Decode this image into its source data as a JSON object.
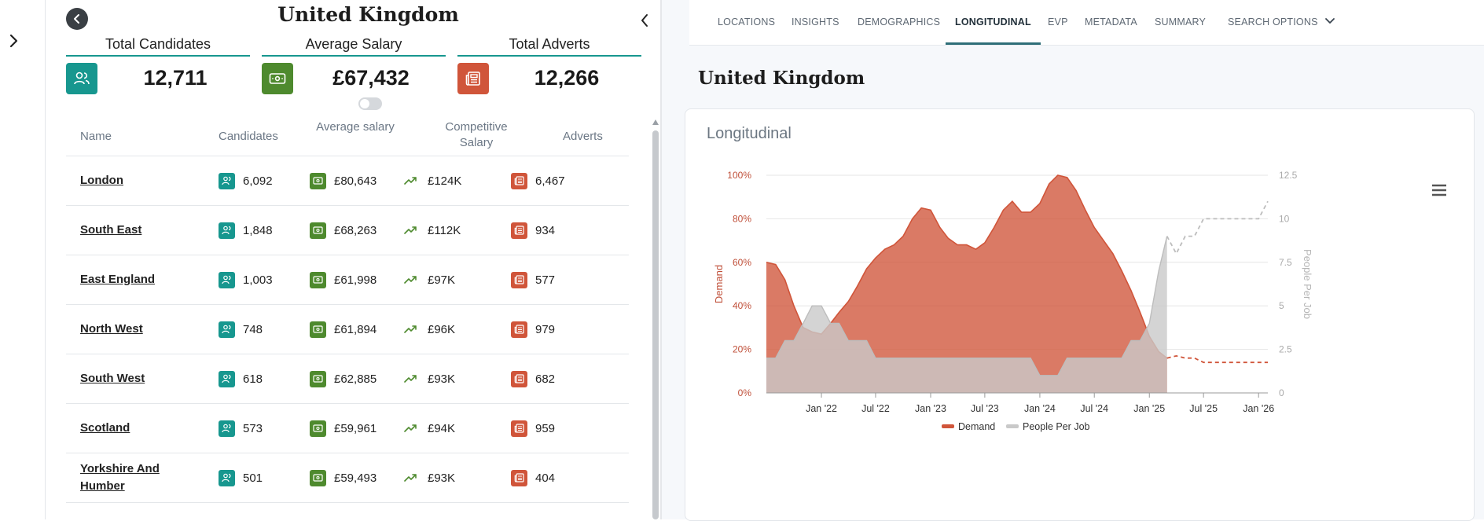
{
  "sidebar_rail": {
    "expand_icon": "chevron-right-icon"
  },
  "left": {
    "title": "United Kingdom",
    "stats": [
      {
        "label": "Total Candidates",
        "value": "12,711",
        "icon": "people-icon",
        "color": "#17978f"
      },
      {
        "label": "Average Salary",
        "value": "£67,432",
        "icon": "banknote-icon",
        "color": "#4e8a2e"
      },
      {
        "label": "Total Adverts",
        "value": "12,266",
        "icon": "newspaper-icon",
        "color": "#d0553a"
      }
    ],
    "table": {
      "headers": {
        "name": "Name",
        "candidates": "Candidates",
        "avg_salary": "Average salary",
        "competitive": "Competitive Salary",
        "adverts": "Adverts"
      },
      "rows": [
        {
          "name": "London",
          "candidates": "6,092",
          "salary": "£80,643",
          "competitive": "£124K",
          "adverts": "6,467"
        },
        {
          "name": "South East",
          "candidates": "1,848",
          "salary": "£68,263",
          "competitive": "£112K",
          "adverts": "934"
        },
        {
          "name": "East England",
          "candidates": "1,003",
          "salary": "£61,998",
          "competitive": "£97K",
          "adverts": "577"
        },
        {
          "name": "North West",
          "candidates": "748",
          "salary": "£61,894",
          "competitive": "£96K",
          "adverts": "979"
        },
        {
          "name": "South West",
          "candidates": "618",
          "salary": "£62,885",
          "competitive": "£93K",
          "adverts": "682"
        },
        {
          "name": "Scotland",
          "candidates": "573",
          "salary": "£59,961",
          "competitive": "£94K",
          "adverts": "959"
        },
        {
          "name": "Yorkshire And Humber",
          "candidates": "501",
          "salary": "£59,493",
          "competitive": "£93K",
          "adverts": "404"
        }
      ]
    }
  },
  "right": {
    "tabs": [
      "LOCATIONS",
      "INSIGHTS",
      "DEMOGRAPHICS",
      "LONGITUDINAL",
      "EVP",
      "METADATA",
      "SUMMARY",
      "SEARCH OPTIONS"
    ],
    "active_tab": "LONGITUDINAL",
    "title": "United Kingdom",
    "card_title": "Longitudinal"
  },
  "chart_data": {
    "type": "area",
    "title": "",
    "xlabel": "",
    "ylabel": "Demand",
    "y2label": "People Per Job",
    "ylim": [
      0,
      100
    ],
    "y2lim": [
      0,
      12.5
    ],
    "yticks": [
      "0%",
      "20%",
      "40%",
      "60%",
      "80%",
      "100%"
    ],
    "y2ticks": [
      "0",
      "2.5",
      "5",
      "7.5",
      "10",
      "12.5"
    ],
    "xlim": [
      "2021-07-01",
      "2026-02-01"
    ],
    "xticks": [
      {
        "date": "2022-01-01",
        "label": "Jan '22"
      },
      {
        "date": "2022-07-01",
        "label": "Jul '22"
      },
      {
        "date": "2023-01-01",
        "label": "Jan '23"
      },
      {
        "date": "2023-07-01",
        "label": "Jul '23"
      },
      {
        "date": "2024-01-01",
        "label": "Jan '24"
      },
      {
        "date": "2024-07-01",
        "label": "Jul '24"
      },
      {
        "date": "2025-01-01",
        "label": "Jan '25"
      },
      {
        "date": "2025-07-01",
        "label": "Jul '25"
      },
      {
        "date": "2026-01-01",
        "label": "Jan '26"
      }
    ],
    "legend_position": "bottom",
    "series": [
      {
        "name": "Demand",
        "axis": "left",
        "color": "#d0553a",
        "points": [
          [
            "2021-07-01",
            60
          ],
          [
            "2021-08-01",
            59
          ],
          [
            "2021-09-01",
            52
          ],
          [
            "2021-10-01",
            40
          ],
          [
            "2021-11-01",
            30
          ],
          [
            "2021-12-01",
            28
          ],
          [
            "2022-01-01",
            27
          ],
          [
            "2022-02-01",
            32
          ],
          [
            "2022-03-01",
            37
          ],
          [
            "2022-04-01",
            42
          ],
          [
            "2022-05-01",
            49
          ],
          [
            "2022-06-01",
            57
          ],
          [
            "2022-07-01",
            62
          ],
          [
            "2022-08-01",
            66
          ],
          [
            "2022-09-01",
            68
          ],
          [
            "2022-10-01",
            72
          ],
          [
            "2022-11-01",
            80
          ],
          [
            "2022-12-01",
            85
          ],
          [
            "2023-01-01",
            84
          ],
          [
            "2023-02-01",
            76
          ],
          [
            "2023-03-01",
            71
          ],
          [
            "2023-04-01",
            68
          ],
          [
            "2023-05-01",
            68
          ],
          [
            "2023-06-01",
            66
          ],
          [
            "2023-07-01",
            69
          ],
          [
            "2023-08-01",
            76
          ],
          [
            "2023-09-01",
            84
          ],
          [
            "2023-10-01",
            88
          ],
          [
            "2023-11-01",
            83
          ],
          [
            "2023-12-01",
            83
          ],
          [
            "2024-01-01",
            87
          ],
          [
            "2024-02-01",
            96
          ],
          [
            "2024-03-01",
            100
          ],
          [
            "2024-04-01",
            99
          ],
          [
            "2024-05-01",
            93
          ],
          [
            "2024-06-01",
            84
          ],
          [
            "2024-07-01",
            76
          ],
          [
            "2024-08-01",
            70
          ],
          [
            "2024-09-01",
            64
          ],
          [
            "2024-10-01",
            56
          ],
          [
            "2024-11-01",
            47
          ],
          [
            "2024-12-01",
            37
          ],
          [
            "2025-01-01",
            26
          ],
          [
            "2025-02-01",
            19
          ],
          [
            "2025-03-01",
            16
          ]
        ]
      },
      {
        "name": "Demand (forecast)",
        "axis": "left",
        "color": "#d0553a",
        "dashed": true,
        "points": [
          [
            "2025-03-01",
            16
          ],
          [
            "2025-04-01",
            17
          ],
          [
            "2025-05-01",
            16
          ],
          [
            "2025-06-01",
            16
          ],
          [
            "2025-07-01",
            14
          ],
          [
            "2025-08-01",
            14
          ],
          [
            "2025-09-01",
            14
          ],
          [
            "2025-10-01",
            14
          ],
          [
            "2025-11-01",
            14
          ],
          [
            "2025-12-01",
            14
          ],
          [
            "2026-01-01",
            14
          ],
          [
            "2026-02-01",
            14
          ]
        ]
      },
      {
        "name": "People Per Job",
        "axis": "right",
        "color": "#c9c9c9",
        "points": [
          [
            "2021-07-01",
            2
          ],
          [
            "2021-08-01",
            2
          ],
          [
            "2021-09-01",
            3
          ],
          [
            "2021-10-01",
            3
          ],
          [
            "2021-11-01",
            4
          ],
          [
            "2021-12-01",
            5
          ],
          [
            "2022-01-01",
            5
          ],
          [
            "2022-02-01",
            4
          ],
          [
            "2022-03-01",
            4
          ],
          [
            "2022-04-01",
            3
          ],
          [
            "2022-05-01",
            3
          ],
          [
            "2022-06-01",
            3
          ],
          [
            "2022-07-01",
            2
          ],
          [
            "2022-08-01",
            2
          ],
          [
            "2022-09-01",
            2
          ],
          [
            "2022-10-01",
            2
          ],
          [
            "2022-11-01",
            2
          ],
          [
            "2022-12-01",
            2
          ],
          [
            "2023-01-01",
            2
          ],
          [
            "2023-02-01",
            2
          ],
          [
            "2023-03-01",
            2
          ],
          [
            "2023-04-01",
            2
          ],
          [
            "2023-05-01",
            2
          ],
          [
            "2023-06-01",
            2
          ],
          [
            "2023-07-01",
            2
          ],
          [
            "2023-08-01",
            2
          ],
          [
            "2023-09-01",
            2
          ],
          [
            "2023-10-01",
            2
          ],
          [
            "2023-11-01",
            2
          ],
          [
            "2023-12-01",
            2
          ],
          [
            "2024-01-01",
            1
          ],
          [
            "2024-02-01",
            1
          ],
          [
            "2024-03-01",
            1
          ],
          [
            "2024-04-01",
            2
          ],
          [
            "2024-05-01",
            2
          ],
          [
            "2024-06-01",
            2
          ],
          [
            "2024-07-01",
            2
          ],
          [
            "2024-08-01",
            2
          ],
          [
            "2024-09-01",
            2
          ],
          [
            "2024-10-01",
            2
          ],
          [
            "2024-11-01",
            3
          ],
          [
            "2024-12-01",
            3
          ],
          [
            "2025-01-01",
            4
          ],
          [
            "2025-02-01",
            7
          ],
          [
            "2025-03-01",
            9
          ]
        ]
      },
      {
        "name": "People Per Job (forecast)",
        "axis": "right",
        "color": "#bdbdbd",
        "dashed": true,
        "points": [
          [
            "2025-03-01",
            9
          ],
          [
            "2025-04-01",
            8
          ],
          [
            "2025-05-01",
            9
          ],
          [
            "2025-06-01",
            9
          ],
          [
            "2025-07-01",
            10
          ],
          [
            "2025-08-01",
            10
          ],
          [
            "2025-09-01",
            10
          ],
          [
            "2025-10-01",
            10
          ],
          [
            "2025-11-01",
            10
          ],
          [
            "2025-12-01",
            10
          ],
          [
            "2026-01-01",
            10
          ],
          [
            "2026-02-01",
            11
          ]
        ]
      }
    ],
    "legend": [
      {
        "label": "Demand",
        "color": "#d0553a"
      },
      {
        "label": "People Per Job",
        "color": "#c9c9c9"
      }
    ]
  }
}
